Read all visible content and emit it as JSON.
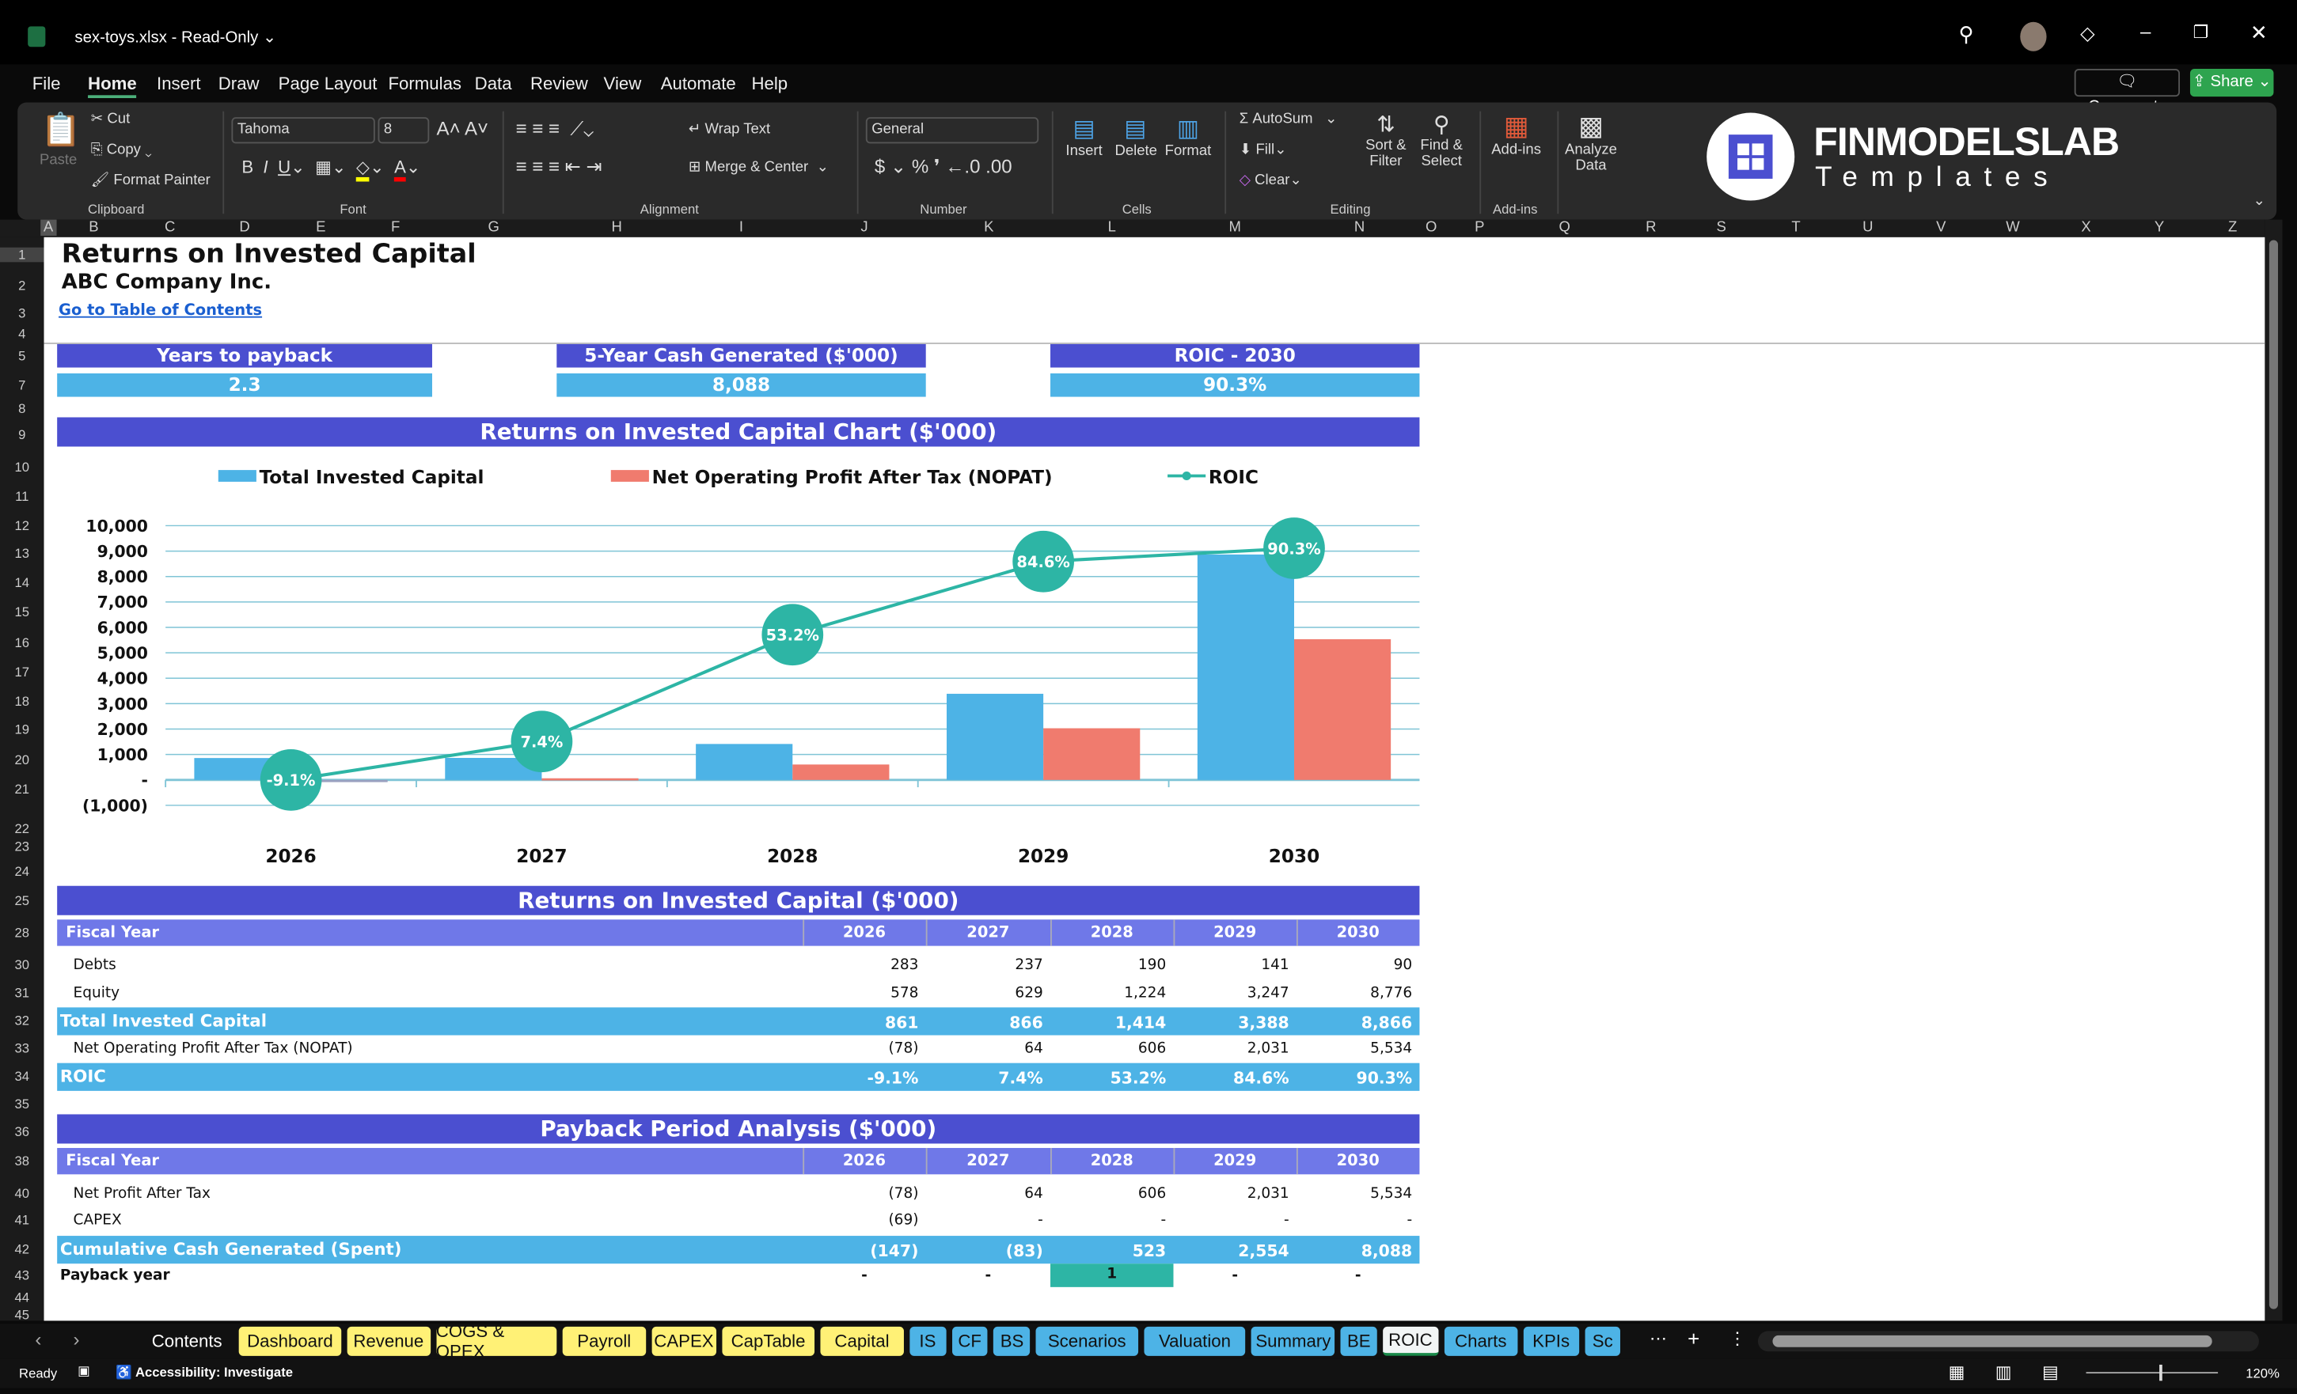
{
  "window": {
    "title": "sex-toys.xlsx  -  Read-Only ⌄",
    "comments": "Comments",
    "share": "Share"
  },
  "menu": [
    "File",
    "Home",
    "Insert",
    "Draw",
    "Page Layout",
    "Formulas",
    "Data",
    "Review",
    "View",
    "Automate",
    "Help"
  ],
  "ribbon": {
    "paste": "Paste",
    "cut": "Cut",
    "copy": "Copy",
    "format_painter": "Format Painter",
    "clipboard": "Clipboard",
    "font_name": "Tahoma",
    "font_size": "8",
    "font": "Font",
    "wrap_text": "Wrap Text",
    "merge_center": "Merge & Center",
    "alignment": "Alignment",
    "number_format": "General",
    "number": "Number",
    "insert": "Insert",
    "delete": "Delete",
    "format": "Format",
    "cells": "Cells",
    "autosum": "AutoSum",
    "fill": "Fill",
    "clear": "Clear",
    "sort_filter": "Sort & Filter",
    "find_select": "Find & Select",
    "editing": "Editing",
    "addins": "Add-ins",
    "addins_group": "Add-ins",
    "analyze": "Analyze Data",
    "logo_main": "FINMODELSLAB",
    "logo_sub": "Templates"
  },
  "columns": [
    "A",
    "B",
    "C",
    "D",
    "E",
    "F",
    "G",
    "H",
    "I",
    "J",
    "K",
    "L",
    "M",
    "N",
    "O",
    "P",
    "Q",
    "R",
    "S",
    "T",
    "U",
    "V",
    "W",
    "X",
    "Y",
    "Z"
  ],
  "rows": [
    "1",
    "2",
    "3",
    "4",
    "5",
    "7",
    "8",
    "9",
    "10",
    "11",
    "12",
    "13",
    "14",
    "15",
    "16",
    "17",
    "18",
    "19",
    "20",
    "21",
    "22",
    "23",
    "24",
    "25",
    "28",
    "30",
    "31",
    "32",
    "33",
    "34",
    "35",
    "36",
    "38",
    "40",
    "41",
    "42",
    "43",
    "44",
    "45"
  ],
  "sheet": {
    "title": "Returns on Invested Capital",
    "company": "ABC Company Inc.",
    "toc_link": "Go to Table of Contents",
    "kpis": [
      {
        "label": "Years to payback",
        "value": "2.3"
      },
      {
        "label": "5-Year Cash Generated ($'000)",
        "value": "8,088"
      },
      {
        "label": "ROIC - 2030",
        "value": "90.3%"
      }
    ],
    "roic_table": {
      "title": "Returns on Invested Capital ($'000)",
      "header": "Fiscal Year",
      "years": [
        "2026",
        "2027",
        "2028",
        "2029",
        "2030"
      ],
      "rows": [
        {
          "label": "Debts",
          "values": [
            "283",
            "237",
            "190",
            "141",
            "90"
          ],
          "style": "plain"
        },
        {
          "label": "Equity",
          "values": [
            "578",
            "629",
            "1,224",
            "3,247",
            "8,776"
          ],
          "style": "plain"
        },
        {
          "label": "Total Invested Capital",
          "values": [
            "861",
            "866",
            "1,414",
            "3,388",
            "8,866"
          ],
          "style": "total"
        },
        {
          "label": "Net Operating Profit After Tax (NOPAT)",
          "values": [
            "(78)",
            "64",
            "606",
            "2,031",
            "5,534"
          ],
          "style": "plain"
        },
        {
          "label": "ROIC",
          "values": [
            "-9.1%",
            "7.4%",
            "53.2%",
            "84.6%",
            "90.3%"
          ],
          "style": "total"
        }
      ]
    },
    "payback_table": {
      "title": "Payback Period Analysis ($'000)",
      "header": "Fiscal Year",
      "years": [
        "2026",
        "2027",
        "2028",
        "2029",
        "2030"
      ],
      "rows": [
        {
          "label": "Net Profit After Tax",
          "values": [
            "(78)",
            "64",
            "606",
            "2,031",
            "5,534"
          ],
          "style": "plain"
        },
        {
          "label": "CAPEX",
          "values": [
            "(69)",
            "-",
            "-",
            "-",
            "-"
          ],
          "style": "plain"
        },
        {
          "label": "Cumulative Cash Generated (Spent)",
          "values": [
            "(147)",
            "(83)",
            "523",
            "2,554",
            "8,088"
          ],
          "style": "total"
        },
        {
          "label": "Payback year",
          "values": [
            "-",
            "-",
            "1",
            "-",
            "-"
          ],
          "style": "payback"
        }
      ]
    }
  },
  "chart_data": {
    "type": "bar",
    "title": "Returns on Invested Capital Chart ($'000)",
    "categories": [
      "2026",
      "2027",
      "2028",
      "2029",
      "2030"
    ],
    "series": [
      {
        "name": "Total Invested Capital",
        "kind": "bar",
        "color": "#4db3e6",
        "values": [
          861,
          866,
          1414,
          3388,
          8866
        ]
      },
      {
        "name": "Net Operating Profit After Tax (NOPAT)",
        "kind": "bar",
        "color": "#f07b6e",
        "values": [
          -78,
          64,
          606,
          2031,
          5534
        ]
      },
      {
        "name": "ROIC",
        "kind": "line",
        "axis": "secondary",
        "color": "#2db5a5",
        "values": [
          -9.1,
          7.4,
          53.2,
          84.6,
          90.3
        ],
        "labels": [
          "-9.1%",
          "7.4%",
          "53.2%",
          "84.6%",
          "90.3%"
        ]
      }
    ],
    "ylim": [
      -1000,
      10000
    ],
    "y2lim": [
      -20,
      100
    ],
    "yticks": [
      "(1,000)",
      "-",
      "1,000",
      "2,000",
      "3,000",
      "4,000",
      "5,000",
      "6,000",
      "7,000",
      "8,000",
      "9,000",
      "10,000"
    ],
    "grid": true,
    "legend": "top"
  },
  "tabs": [
    {
      "label": "Contents",
      "color": "none"
    },
    {
      "label": "Dashboard",
      "color": "#fff176"
    },
    {
      "label": "Revenue",
      "color": "#fff176"
    },
    {
      "label": "COGS & OPEX",
      "color": "#fff176"
    },
    {
      "label": "Payroll",
      "color": "#fff176"
    },
    {
      "label": "CAPEX",
      "color": "#fff176"
    },
    {
      "label": "CapTable",
      "color": "#fff176"
    },
    {
      "label": "Capital",
      "color": "#fff176"
    },
    {
      "label": "IS",
      "color": "#4db3e6"
    },
    {
      "label": "CF",
      "color": "#4db3e6"
    },
    {
      "label": "BS",
      "color": "#4db3e6"
    },
    {
      "label": "Scenarios",
      "color": "#4db3e6"
    },
    {
      "label": "Valuation",
      "color": "#4db3e6"
    },
    {
      "label": "Summary",
      "color": "#4db3e6"
    },
    {
      "label": "BE",
      "color": "#4db3e6"
    },
    {
      "label": "ROIC",
      "color": "active"
    },
    {
      "label": "Charts",
      "color": "#4db3e6"
    },
    {
      "label": "KPIs",
      "color": "#4db3e6"
    },
    {
      "label": "Sc",
      "color": "#4db3e6"
    }
  ],
  "status": {
    "ready": "Ready",
    "accessibility": "Accessibility: Investigate",
    "zoom": "120%"
  }
}
